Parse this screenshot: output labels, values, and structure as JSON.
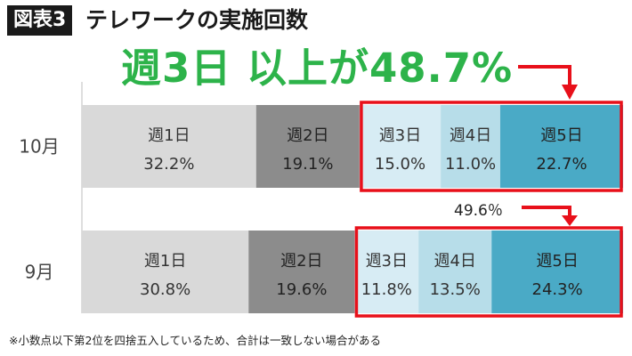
{
  "figure": {
    "tag": "図表3",
    "title": "テレワークの実施回数",
    "headline": "週3日 以上が48.7%",
    "note_row2": "49.6％",
    "footnote": "※小数点以下第2位を四捨五入しているため、合計は一致しない場合がある"
  },
  "colors": {
    "headline": "#2db34a",
    "highlight_box": "#e8101a",
    "arrow": "#e8101a",
    "segments": [
      "#d9d9d9",
      "#8c8c8c",
      "#d7ecf4",
      "#b7dde9",
      "#4aaac6"
    ]
  },
  "chart_data": {
    "type": "bar",
    "orientation": "horizontal",
    "stacked": true,
    "percent_stacked": true,
    "categories": [
      "10月",
      "9月"
    ],
    "segment_labels": [
      "週1日",
      "週2日",
      "週3日",
      "週4日",
      "週5日"
    ],
    "series": [
      {
        "name": "週1日",
        "values": [
          32.2,
          30.8
        ],
        "labels": [
          "32.2%",
          "30.8%"
        ]
      },
      {
        "name": "週2日",
        "values": [
          19.1,
          19.6
        ],
        "labels": [
          "19.1%",
          "19.6%"
        ]
      },
      {
        "name": "週3日",
        "values": [
          15.0,
          11.8
        ],
        "labels": [
          "15.0%",
          "11.8%"
        ]
      },
      {
        "name": "週4日",
        "values": [
          11.0,
          13.5
        ],
        "labels": [
          "11.0%",
          "13.5%"
        ]
      },
      {
        "name": "週5日",
        "values": [
          22.7,
          24.3
        ],
        "labels": [
          "22.7%",
          "24.3%"
        ]
      }
    ],
    "highlighted_segments": [
      "週3日",
      "週4日",
      "週5日"
    ],
    "legend": "none",
    "grid": false
  }
}
